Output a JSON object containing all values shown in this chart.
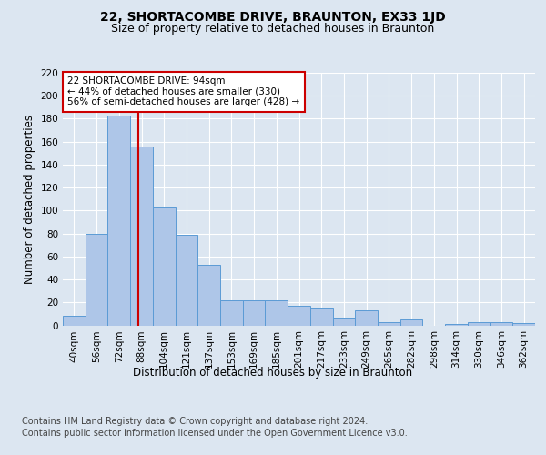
{
  "title": "22, SHORTACOMBE DRIVE, BRAUNTON, EX33 1JD",
  "subtitle": "Size of property relative to detached houses in Braunton",
  "xlabel": "Distribution of detached houses by size in Braunton",
  "ylabel": "Number of detached properties",
  "categories": [
    "40sqm",
    "56sqm",
    "72sqm",
    "88sqm",
    "104sqm",
    "121sqm",
    "137sqm",
    "153sqm",
    "169sqm",
    "185sqm",
    "201sqm",
    "217sqm",
    "233sqm",
    "249sqm",
    "265sqm",
    "282sqm",
    "298sqm",
    "314sqm",
    "330sqm",
    "346sqm",
    "362sqm"
  ],
  "values": [
    8,
    80,
    183,
    156,
    103,
    79,
    53,
    22,
    22,
    22,
    17,
    15,
    7,
    13,
    3,
    5,
    0,
    1,
    3,
    3,
    2
  ],
  "bar_color": "#aec6e8",
  "bar_edge_color": "#5b9bd5",
  "bg_color": "#dce6f1",
  "plot_bg_color": "#dce6f1",
  "grid_color": "#ffffff",
  "ylim": [
    0,
    220
  ],
  "yticks": [
    0,
    20,
    40,
    60,
    80,
    100,
    120,
    140,
    160,
    180,
    200,
    220
  ],
  "vline_color": "#cc0000",
  "annotation_text": "22 SHORTACOMBE DRIVE: 94sqm\n← 44% of detached houses are smaller (330)\n56% of semi-detached houses are larger (428) →",
  "annotation_box_color": "#ffffff",
  "annotation_box_edge": "#cc0000",
  "footer_line1": "Contains HM Land Registry data © Crown copyright and database right 2024.",
  "footer_line2": "Contains public sector information licensed under the Open Government Licence v3.0.",
  "title_fontsize": 10,
  "subtitle_fontsize": 9,
  "axis_label_fontsize": 8.5,
  "tick_fontsize": 7.5,
  "annotation_fontsize": 7.5,
  "footer_fontsize": 7
}
